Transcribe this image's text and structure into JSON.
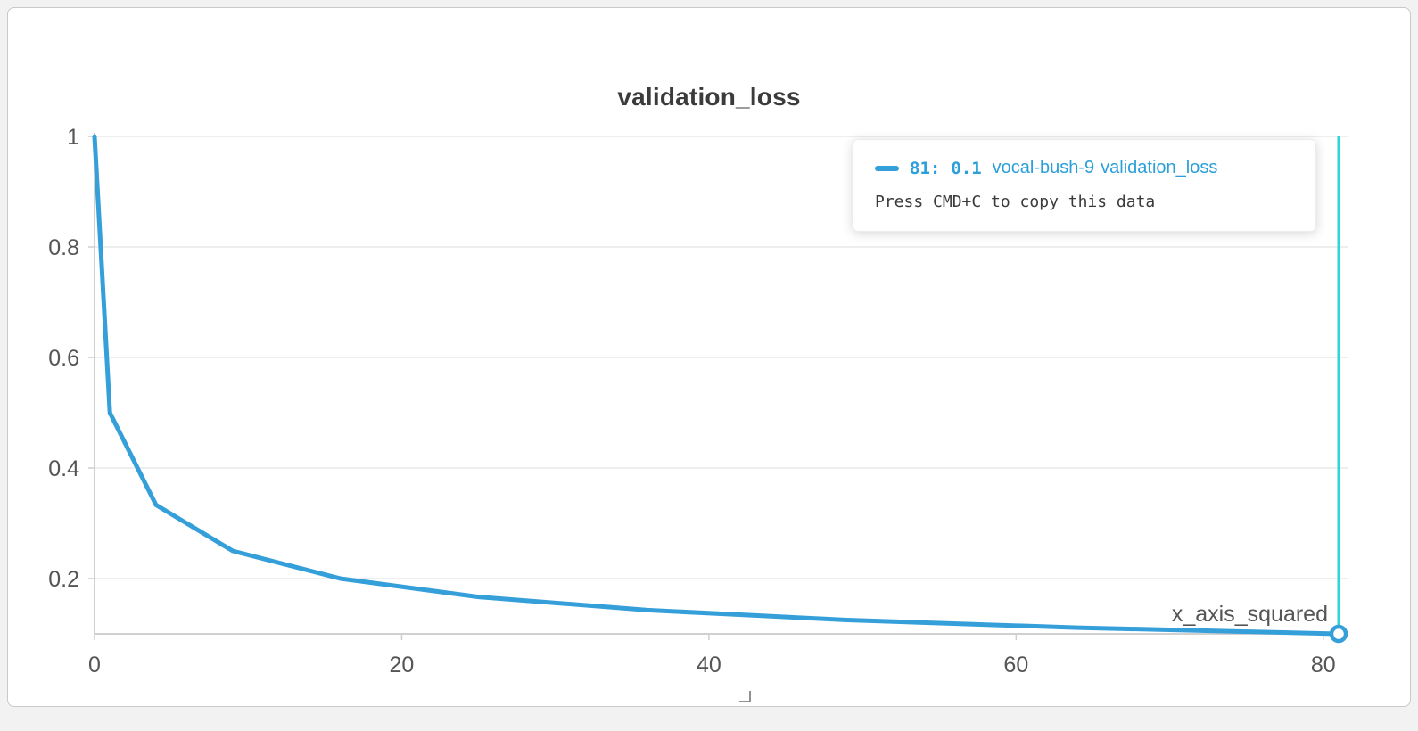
{
  "panel": {
    "title": "validation_loss",
    "x_axis_label": "x_axis_squared"
  },
  "tooltip": {
    "point_label": "81:",
    "point_value": "0.1",
    "run_name": "vocal-bush-9",
    "metric_name": "validation_loss",
    "hint": "Press CMD+C to copy this data"
  },
  "colors": {
    "line": "#359fd9",
    "crosshair": "#2bd5d8",
    "tooltip_link": "#2a9fd9",
    "axis_text": "#555555",
    "grid": "#e8e8e8",
    "axis_line": "#d0d0d0"
  },
  "chart_data": {
    "type": "line",
    "title": "validation_loss",
    "xlabel": "x_axis_squared",
    "ylabel": "",
    "series": [
      {
        "name": "vocal-bush-9",
        "x": [
          0,
          1,
          4,
          9,
          16,
          25,
          36,
          49,
          64,
          81
        ],
        "y": [
          1,
          0.5,
          0.3333,
          0.25,
          0.2,
          0.1667,
          0.1429,
          0.125,
          0.1111,
          0.1
        ]
      }
    ],
    "xlim": [
      0,
      81
    ],
    "ylim": [
      0.1,
      1.0
    ],
    "x_ticks": [
      0,
      20,
      40,
      60,
      80
    ],
    "y_ticks": [
      1,
      0.8,
      0.6,
      0.4,
      0.2
    ],
    "grid": "horizontal",
    "legend_position": "tooltip",
    "crosshair_x": 81,
    "highlight_point": {
      "x": 81,
      "y": 0.1
    }
  }
}
